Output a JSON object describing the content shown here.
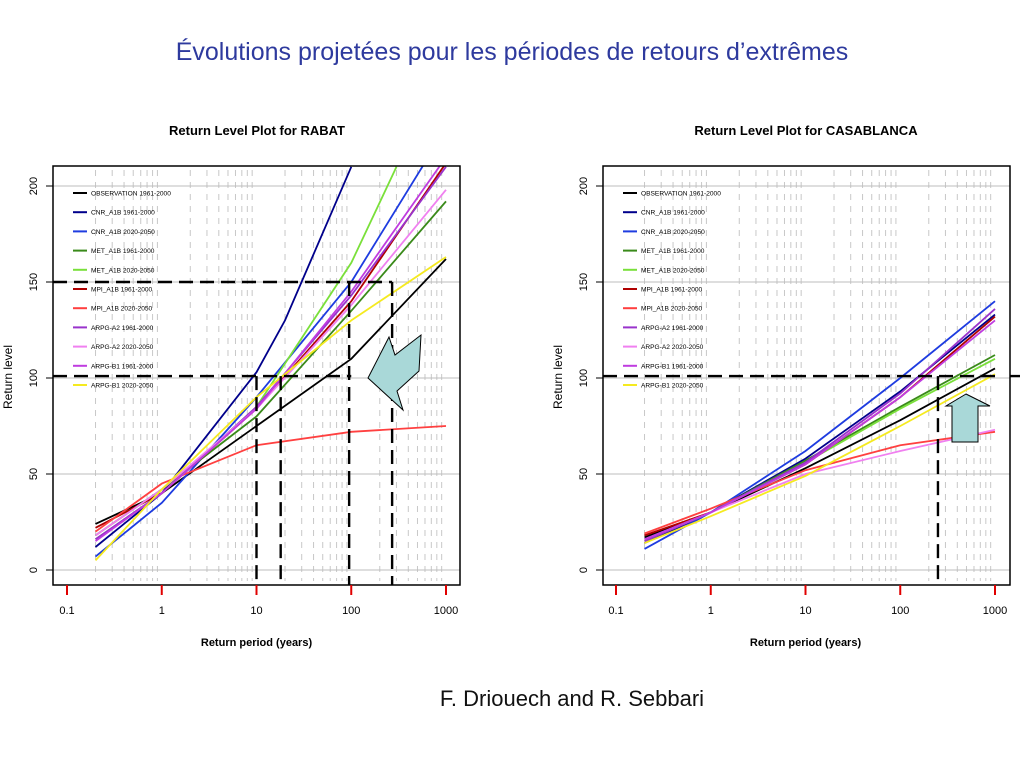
{
  "slide": {
    "title": "Évolutions projetées pour les périodes de retours d’extrêmes",
    "authors": "F. Driouech and R. Sebbari"
  },
  "chart_data": [
    {
      "type": "line",
      "title": "Return Level Plot for  RABAT",
      "xlabel": "Return period (years)",
      "ylabel": "Return level",
      "xscale": "log",
      "xlim": [
        0.1,
        1000
      ],
      "ylim": [
        0,
        200
      ],
      "xticks": [
        "0.1",
        "1",
        "10",
        "100",
        "1000"
      ],
      "yticks": [
        "0",
        "50",
        "100",
        "150",
        "200"
      ],
      "legend_position": "top-left",
      "reference_lines": [
        {
          "type": "horizontal",
          "y": 150,
          "x_to": 270
        },
        {
          "type": "horizontal",
          "y": 101,
          "x_to": 100
        },
        {
          "type": "vertical",
          "x": 10,
          "y_to": 101
        },
        {
          "type": "vertical",
          "x": 18,
          "y_to": 101
        },
        {
          "type": "vertical",
          "x": 95,
          "y_to": 150
        },
        {
          "type": "vertical",
          "x": 270,
          "y_to": 150
        }
      ],
      "arrow": "diagonal-up-left",
      "series": [
        {
          "name": "OBSERVATION   1961-2000",
          "color": "#000000",
          "points": [
            [
              0.2,
              24
            ],
            [
              1,
              40
            ],
            [
              10,
              75
            ],
            [
              100,
              110
            ],
            [
              1000,
              162
            ]
          ]
        },
        {
          "name": "CNR_A1B   1961-2000",
          "color": "#00008b",
          "points": [
            [
              0.2,
              12
            ],
            [
              1,
              40
            ],
            [
              10,
              103
            ],
            [
              20,
              130
            ],
            [
              100,
              210
            ]
          ]
        },
        {
          "name": "CNR_A1B   2020-2050",
          "color": "#1e3ce0",
          "points": [
            [
              0.2,
              7
            ],
            [
              1,
              35
            ],
            [
              10,
              90
            ],
            [
              100,
              150
            ],
            [
              1000,
              230
            ]
          ]
        },
        {
          "name": "MET_A1B   1961-2000",
          "color": "#3a8a1a",
          "points": [
            [
              0.2,
              18
            ],
            [
              1,
              42
            ],
            [
              10,
              80
            ],
            [
              100,
              135
            ],
            [
              1000,
              192
            ]
          ]
        },
        {
          "name": "MET_A1B   2020-2050",
          "color": "#7ae03a",
          "points": [
            [
              0.2,
              16
            ],
            [
              1,
              40
            ],
            [
              10,
              85
            ],
            [
              100,
              160
            ],
            [
              300,
              210
            ]
          ]
        },
        {
          "name": "MPI_A1B   1961-2000",
          "color": "#b00000",
          "points": [
            [
              0.2,
              22
            ],
            [
              1,
              40
            ],
            [
              10,
              84
            ],
            [
              100,
              140
            ],
            [
              1000,
              212
            ]
          ]
        },
        {
          "name": "MPI_A1B   2020-2050",
          "color": "#ff4040",
          "points": [
            [
              0.2,
              20
            ],
            [
              1,
              45
            ],
            [
              10,
              65
            ],
            [
              100,
              72
            ],
            [
              1000,
              75
            ]
          ]
        },
        {
          "name": "ARPG-A2   1961-2000",
          "color": "#9933cc",
          "points": [
            [
              0.2,
              16
            ],
            [
              1,
              40
            ],
            [
              10,
              85
            ],
            [
              100,
              143
            ],
            [
              1000,
              210
            ]
          ]
        },
        {
          "name": "ARPG-A2   2020-2050",
          "color": "#f080f0",
          "points": [
            [
              0.2,
              18
            ],
            [
              1,
              42
            ],
            [
              10,
              84
            ],
            [
              100,
              138
            ],
            [
              1000,
              198
            ]
          ]
        },
        {
          "name": "ARPG-B1   1961-2000",
          "color": "#c03ce0",
          "points": [
            [
              0.2,
              15
            ],
            [
              1,
              40
            ],
            [
              10,
              84
            ],
            [
              100,
              145
            ],
            [
              1000,
              215
            ]
          ]
        },
        {
          "name": "ARPG-B1   2020-2050",
          "color": "#f5ea20",
          "points": [
            [
              0.2,
              5
            ],
            [
              1,
              42
            ],
            [
              10,
              90
            ],
            [
              100,
              130
            ],
            [
              1000,
              163
            ]
          ]
        }
      ]
    },
    {
      "type": "line",
      "title": "Return Level Plot for  CASABLANCA",
      "xlabel": "Return period (years)",
      "ylabel": "Return level",
      "xscale": "log",
      "xlim": [
        0.1,
        1000
      ],
      "ylim": [
        0,
        200
      ],
      "xticks": [
        "0.1",
        "1",
        "10",
        "100",
        "1000"
      ],
      "yticks": [
        "0",
        "50",
        "100",
        "150",
        "200"
      ],
      "legend_position": "top-left",
      "reference_lines": [
        {
          "type": "horizontal",
          "y": 101,
          "x_to": 1000
        },
        {
          "type": "vertical",
          "x": 250,
          "y_to": 101
        }
      ],
      "arrow": "up",
      "series": [
        {
          "name": "OBSERVATION   1961-2000",
          "color": "#000000",
          "points": [
            [
              0.2,
              17
            ],
            [
              1,
              30
            ],
            [
              10,
              53
            ],
            [
              100,
              78
            ],
            [
              1000,
              105
            ]
          ]
        },
        {
          "name": "CNR_A1B   1961-2000",
          "color": "#00008b",
          "points": [
            [
              0.2,
              14
            ],
            [
              1,
              30
            ],
            [
              10,
              58
            ],
            [
              100,
              93
            ],
            [
              1000,
              133
            ]
          ]
        },
        {
          "name": "CNR_A1B   2020-2050",
          "color": "#1e3ce0",
          "points": [
            [
              0.2,
              11
            ],
            [
              1,
              30
            ],
            [
              10,
              62
            ],
            [
              100,
              100
            ],
            [
              1000,
              140
            ]
          ]
        },
        {
          "name": "MET_A1B   1961-2000",
          "color": "#3a8a1a",
          "points": [
            [
              0.2,
              16
            ],
            [
              1,
              30
            ],
            [
              10,
              57
            ],
            [
              100,
              85
            ],
            [
              1000,
              112
            ]
          ]
        },
        {
          "name": "MET_A1B   2020-2050",
          "color": "#7ae03a",
          "points": [
            [
              0.2,
              15
            ],
            [
              1,
              30
            ],
            [
              10,
              56
            ],
            [
              100,
              84
            ],
            [
              1000,
              110
            ]
          ]
        },
        {
          "name": "MPI_A1B   1961-2000",
          "color": "#b00000",
          "points": [
            [
              0.2,
              18
            ],
            [
              1,
              30
            ],
            [
              10,
              55
            ],
            [
              100,
              90
            ],
            [
              1000,
              132
            ]
          ]
        },
        {
          "name": "MPI_A1B   2020-2050",
          "color": "#ff4040",
          "points": [
            [
              0.2,
              19
            ],
            [
              1,
              32
            ],
            [
              10,
              52
            ],
            [
              100,
              65
            ],
            [
              1000,
              72
            ]
          ]
        },
        {
          "name": "ARPG-A2   1961-2000",
          "color": "#9933cc",
          "points": [
            [
              0.2,
              15
            ],
            [
              1,
              30
            ],
            [
              10,
              56
            ],
            [
              100,
              92
            ],
            [
              1000,
              136
            ]
          ]
        },
        {
          "name": "ARPG-A2   2020-2050",
          "color": "#f080f0",
          "points": [
            [
              0.2,
              16
            ],
            [
              1,
              30
            ],
            [
              10,
              50
            ],
            [
              100,
              62
            ],
            [
              1000,
              73
            ]
          ]
        },
        {
          "name": "ARPG-B1   1961-2000",
          "color": "#c03ce0",
          "points": [
            [
              0.2,
              16
            ],
            [
              1,
              30
            ],
            [
              10,
              55
            ],
            [
              100,
              90
            ],
            [
              1000,
              130
            ]
          ]
        },
        {
          "name": "ARPG-B1   2020-2050",
          "color": "#f5ea20",
          "points": [
            [
              0.2,
              14
            ],
            [
              1,
              28
            ],
            [
              10,
              49
            ],
            [
              100,
              75
            ],
            [
              1000,
              102
            ]
          ]
        }
      ]
    }
  ]
}
